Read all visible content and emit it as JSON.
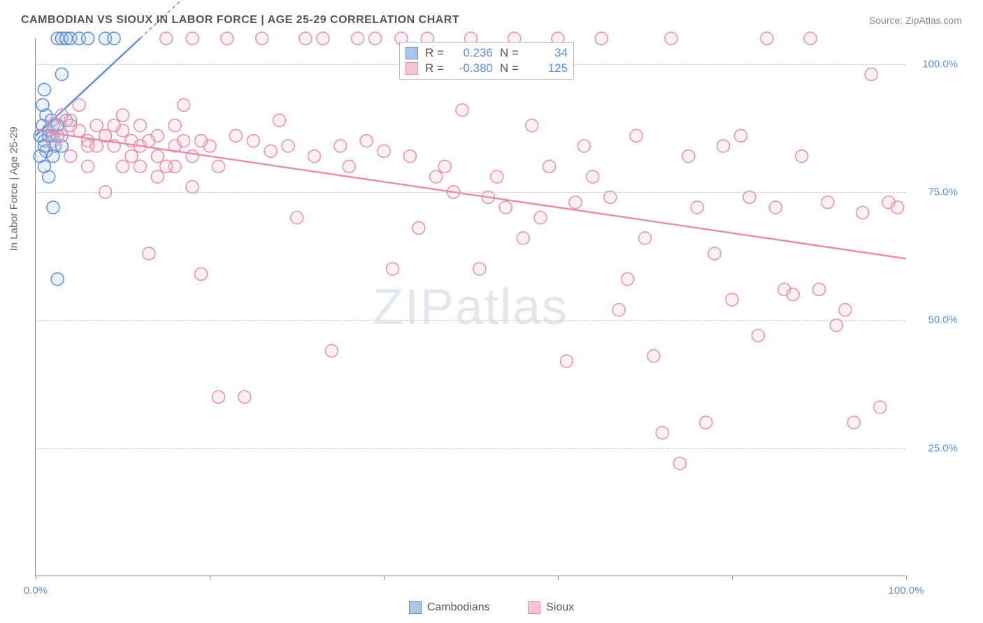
{
  "title": "CAMBODIAN VS SIOUX IN LABOR FORCE | AGE 25-29 CORRELATION CHART",
  "source": "Source: ZipAtlas.com",
  "y_axis_label": "In Labor Force | Age 25-29",
  "watermark_zip": "ZIP",
  "watermark_atlas": "atlas",
  "chart": {
    "type": "scatter",
    "xlim": [
      0,
      100
    ],
    "ylim": [
      0,
      105
    ],
    "x_ticks": [
      0,
      20,
      40,
      60,
      80,
      100
    ],
    "x_tick_labels": {
      "0": "0.0%",
      "100": "100.0%"
    },
    "y_gridlines": [
      25,
      50,
      75,
      100
    ],
    "y_tick_labels": {
      "25": "25.0%",
      "50": "50.0%",
      "75": "75.0%",
      "100": "100.0%"
    },
    "background_color": "#ffffff",
    "grid_color": "#cccccc",
    "axis_color": "#888888",
    "marker_radius": 9,
    "marker_stroke_width": 1.5,
    "marker_fill_opacity": 0.25,
    "regression_line_width": 2.5,
    "series": [
      {
        "name": "Cambodians",
        "color_stroke": "#5b8fd6",
        "color_fill": "#aac6ea",
        "R": "0.236",
        "N": "34",
        "regression": {
          "x1": 0,
          "y1": 86,
          "x2": 12,
          "y2": 105,
          "dash_extend": true
        },
        "points": [
          [
            0.5,
            86
          ],
          [
            0.8,
            88
          ],
          [
            1.0,
            85
          ],
          [
            1.2,
            90
          ],
          [
            1.5,
            87
          ],
          [
            1.8,
            89
          ],
          [
            2.0,
            86
          ],
          [
            2.2,
            84
          ],
          [
            2.5,
            105
          ],
          [
            3.0,
            105
          ],
          [
            3.5,
            105
          ],
          [
            4.0,
            105
          ],
          [
            5.0,
            105
          ],
          [
            6.0,
            105
          ],
          [
            8.0,
            105
          ],
          [
            9.0,
            105
          ],
          [
            1.0,
            80
          ],
          [
            1.5,
            78
          ],
          [
            2.0,
            72
          ],
          [
            2.5,
            58
          ],
          [
            3.0,
            98
          ],
          [
            1.0,
            95
          ],
          [
            0.8,
            92
          ],
          [
            1.2,
            83
          ],
          [
            2.0,
            88
          ],
          [
            2.5,
            86
          ],
          [
            3.0,
            84
          ],
          [
            3.5,
            89
          ],
          [
            0.5,
            82
          ],
          [
            1.0,
            84
          ],
          [
            1.5,
            86
          ],
          [
            2.0,
            82
          ],
          [
            2.5,
            88
          ],
          [
            3.0,
            86
          ]
        ]
      },
      {
        "name": "Sioux",
        "color_stroke": "#e68fa8",
        "color_fill": "#f5c5d3",
        "R": "-0.380",
        "N": "125",
        "regression": {
          "x1": 0,
          "y1": 87,
          "x2": 100,
          "y2": 62,
          "dash_extend": false
        },
        "points": [
          [
            2,
            88
          ],
          [
            3,
            86
          ],
          [
            4,
            89
          ],
          [
            5,
            87
          ],
          [
            6,
            85
          ],
          [
            7,
            88
          ],
          [
            8,
            86
          ],
          [
            9,
            84
          ],
          [
            10,
            87
          ],
          [
            11,
            85
          ],
          [
            12,
            88
          ],
          [
            13,
            63
          ],
          [
            14,
            86
          ],
          [
            15,
            105
          ],
          [
            16,
            84
          ],
          [
            17,
            85
          ],
          [
            18,
            105
          ],
          [
            19,
            59
          ],
          [
            20,
            84
          ],
          [
            21,
            35
          ],
          [
            22,
            105
          ],
          [
            23,
            86
          ],
          [
            24,
            35
          ],
          [
            25,
            85
          ],
          [
            26,
            105
          ],
          [
            27,
            83
          ],
          [
            28,
            89
          ],
          [
            29,
            84
          ],
          [
            30,
            70
          ],
          [
            31,
            105
          ],
          [
            32,
            82
          ],
          [
            33,
            105
          ],
          [
            34,
            44
          ],
          [
            35,
            84
          ],
          [
            36,
            80
          ],
          [
            37,
            105
          ],
          [
            38,
            85
          ],
          [
            39,
            105
          ],
          [
            40,
            83
          ],
          [
            41,
            60
          ],
          [
            42,
            105
          ],
          [
            43,
            82
          ],
          [
            44,
            68
          ],
          [
            45,
            105
          ],
          [
            46,
            78
          ],
          [
            47,
            80
          ],
          [
            48,
            75
          ],
          [
            49,
            91
          ],
          [
            50,
            105
          ],
          [
            51,
            60
          ],
          [
            52,
            74
          ],
          [
            53,
            78
          ],
          [
            54,
            72
          ],
          [
            55,
            105
          ],
          [
            56,
            66
          ],
          [
            57,
            88
          ],
          [
            58,
            70
          ],
          [
            59,
            80
          ],
          [
            60,
            105
          ],
          [
            61,
            42
          ],
          [
            62,
            73
          ],
          [
            63,
            84
          ],
          [
            64,
            78
          ],
          [
            65,
            105
          ],
          [
            66,
            74
          ],
          [
            67,
            52
          ],
          [
            68,
            58
          ],
          [
            69,
            86
          ],
          [
            70,
            66
          ],
          [
            71,
            43
          ],
          [
            72,
            28
          ],
          [
            73,
            105
          ],
          [
            74,
            22
          ],
          [
            75,
            82
          ],
          [
            76,
            72
          ],
          [
            77,
            30
          ],
          [
            78,
            63
          ],
          [
            79,
            84
          ],
          [
            80,
            54
          ],
          [
            81,
            86
          ],
          [
            82,
            74
          ],
          [
            83,
            47
          ],
          [
            84,
            105
          ],
          [
            85,
            72
          ],
          [
            86,
            56
          ],
          [
            87,
            55
          ],
          [
            88,
            82
          ],
          [
            89,
            105
          ],
          [
            90,
            56
          ],
          [
            91,
            73
          ],
          [
            92,
            49
          ],
          [
            93,
            52
          ],
          [
            94,
            30
          ],
          [
            95,
            71
          ],
          [
            96,
            98
          ],
          [
            97,
            33
          ],
          [
            98,
            73
          ],
          [
            99,
            72
          ],
          [
            4,
            82
          ],
          [
            6,
            80
          ],
          [
            8,
            75
          ],
          [
            10,
            90
          ],
          [
            12,
            80
          ],
          [
            14,
            78
          ],
          [
            16,
            80
          ],
          [
            18,
            76
          ],
          [
            3,
            90
          ],
          [
            5,
            92
          ],
          [
            7,
            84
          ],
          [
            9,
            88
          ],
          [
            11,
            82
          ],
          [
            13,
            85
          ],
          [
            15,
            80
          ],
          [
            17,
            92
          ],
          [
            19,
            85
          ],
          [
            21,
            80
          ],
          [
            2,
            85
          ],
          [
            4,
            88
          ],
          [
            6,
            84
          ],
          [
            8,
            86
          ],
          [
            10,
            80
          ],
          [
            12,
            84
          ],
          [
            14,
            82
          ],
          [
            16,
            88
          ],
          [
            18,
            82
          ]
        ]
      }
    ]
  },
  "legend_top": {
    "r_label": "R =",
    "n_label": "N ="
  },
  "bottom_legend": {
    "items": [
      "Cambodians",
      "Sioux"
    ]
  }
}
